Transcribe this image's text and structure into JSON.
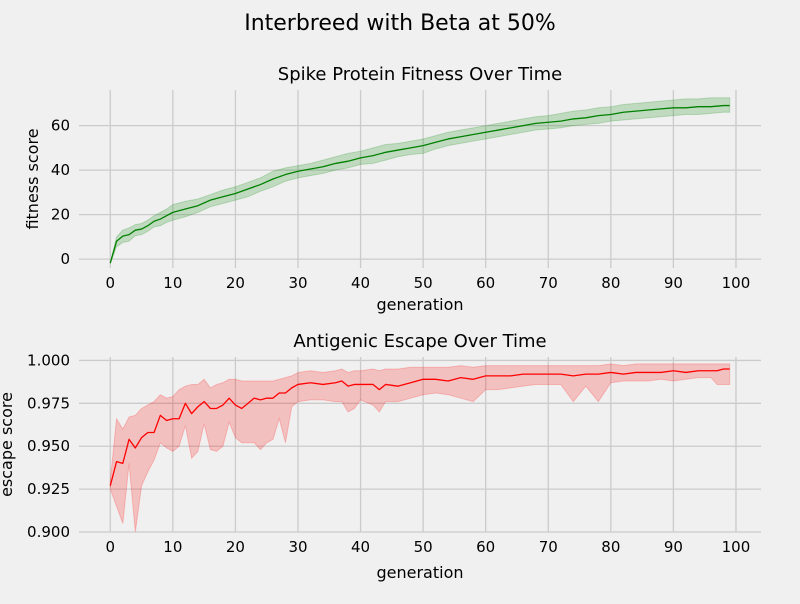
{
  "figure": {
    "suptitle": "Interbreed with Beta at 50%"
  },
  "chart_data": [
    {
      "type": "line",
      "title": "Spike Protein Fitness Over Time",
      "xlabel": "generation",
      "ylabel": "fitness score",
      "xlim": [
        -5,
        104
      ],
      "ylim": [
        -4,
        76
      ],
      "xticks": [
        0,
        10,
        20,
        30,
        40,
        50,
        60,
        70,
        80,
        90,
        100
      ],
      "yticks": [
        0,
        20,
        40,
        60
      ],
      "ytick_labels": [
        "0",
        "20",
        "40",
        "60"
      ],
      "grid": true,
      "series": [
        {
          "line_color": "#008000",
          "band_color": "#008000",
          "x": [
            0,
            1,
            2,
            3,
            4,
            5,
            6,
            7,
            8,
            9,
            10,
            12,
            14,
            16,
            18,
            20,
            22,
            24,
            26,
            28,
            30,
            32,
            34,
            36,
            38,
            40,
            42,
            44,
            46,
            48,
            50,
            52,
            54,
            56,
            58,
            60,
            62,
            64,
            66,
            68,
            70,
            72,
            74,
            76,
            78,
            80,
            82,
            84,
            86,
            88,
            90,
            92,
            94,
            96,
            98,
            99
          ],
          "mean": [
            -1.8,
            8,
            10.3,
            11,
            13,
            13.5,
            15,
            17,
            18,
            19.5,
            21,
            22.5,
            24,
            26.5,
            28,
            29.5,
            31.5,
            33.5,
            36,
            38,
            39.5,
            40.5,
            41.5,
            43,
            44,
            45.5,
            46.5,
            48,
            49,
            50,
            51,
            52.5,
            54,
            55,
            56,
            57,
            58,
            59,
            60,
            61,
            61.5,
            62,
            63,
            63.5,
            64.5,
            65,
            66,
            66.5,
            67,
            67.5,
            68,
            68,
            68.5,
            68.5,
            69,
            69
          ],
          "upper": [
            -1.5,
            10,
            13,
            14,
            15.5,
            16,
            17.5,
            19.5,
            21,
            22.5,
            24.5,
            26,
            27,
            29,
            31,
            32.5,
            34.5,
            36.5,
            39.5,
            41,
            42,
            43,
            44.5,
            46,
            47.5,
            48.5,
            50,
            51.5,
            52,
            53,
            54,
            55.5,
            57,
            58,
            59,
            60,
            61,
            62,
            63,
            64,
            64.5,
            65.5,
            66.5,
            67,
            68,
            68.5,
            69.5,
            70,
            70.5,
            71,
            71.5,
            72,
            72,
            72.5,
            72.5,
            72.5
          ],
          "lower": [
            -2,
            5.5,
            7.5,
            8,
            10.5,
            11,
            12.5,
            14.5,
            15,
            16.5,
            17.5,
            19,
            21,
            23.5,
            25,
            26.5,
            28,
            30.5,
            32.5,
            35,
            36.5,
            37.5,
            38.5,
            40,
            41,
            42.5,
            43,
            44.5,
            46,
            47,
            47.5,
            49.5,
            51,
            52,
            53,
            54,
            55,
            56,
            57,
            58,
            58.5,
            59,
            60,
            60.5,
            61,
            62,
            62.5,
            63,
            63.5,
            64,
            64.5,
            65,
            65,
            65.5,
            66,
            66
          ]
        }
      ]
    },
    {
      "type": "line",
      "title": "Antigenic Escape Over Time",
      "xlabel": "generation",
      "ylabel": "escape score",
      "xlim": [
        -5,
        104
      ],
      "ylim": [
        0.9,
        1.002
      ],
      "xticks": [
        0,
        10,
        20,
        30,
        40,
        50,
        60,
        70,
        80,
        90,
        100
      ],
      "yticks": [
        0.9,
        0.925,
        0.95,
        0.975,
        1.0
      ],
      "ytick_labels": [
        "0.900",
        "0.925",
        "0.950",
        "0.975",
        "1.000"
      ],
      "grid": true,
      "series": [
        {
          "line_color": "#ff0000",
          "band_color": "#ff0000",
          "x": [
            0,
            1,
            2,
            3,
            4,
            5,
            6,
            7,
            8,
            9,
            10,
            11,
            12,
            13,
            14,
            15,
            16,
            17,
            18,
            19,
            20,
            21,
            22,
            23,
            24,
            25,
            26,
            27,
            28,
            29,
            30,
            32,
            34,
            36,
            37,
            38,
            39,
            40,
            42,
            43,
            44,
            46,
            48,
            50,
            52,
            54,
            56,
            58,
            60,
            62,
            64,
            66,
            68,
            70,
            72,
            74,
            76,
            78,
            80,
            82,
            84,
            86,
            88,
            90,
            92,
            94,
            96,
            97,
            98,
            99
          ],
          "mean": [
            0.927,
            0.941,
            0.94,
            0.954,
            0.949,
            0.955,
            0.958,
            0.958,
            0.968,
            0.965,
            0.966,
            0.966,
            0.975,
            0.969,
            0.973,
            0.976,
            0.972,
            0.972,
            0.974,
            0.978,
            0.974,
            0.972,
            0.975,
            0.978,
            0.977,
            0.978,
            0.978,
            0.981,
            0.981,
            0.984,
            0.986,
            0.987,
            0.986,
            0.987,
            0.988,
            0.985,
            0.986,
            0.986,
            0.986,
            0.983,
            0.986,
            0.985,
            0.987,
            0.989,
            0.989,
            0.988,
            0.99,
            0.989,
            0.991,
            0.991,
            0.991,
            0.992,
            0.992,
            0.992,
            0.992,
            0.991,
            0.992,
            0.992,
            0.993,
            0.992,
            0.993,
            0.993,
            0.993,
            0.994,
            0.993,
            0.994,
            0.994,
            0.994,
            0.995,
            0.995
          ],
          "upper": [
            0.93,
            0.966,
            0.96,
            0.967,
            0.968,
            0.972,
            0.974,
            0.976,
            0.98,
            0.978,
            0.979,
            0.983,
            0.985,
            0.986,
            0.986,
            0.989,
            0.984,
            0.986,
            0.987,
            0.989,
            0.989,
            0.988,
            0.988,
            0.988,
            0.988,
            0.988,
            0.988,
            0.989,
            0.99,
            0.991,
            0.993,
            0.994,
            0.993,
            0.994,
            0.995,
            0.993,
            0.994,
            0.994,
            0.995,
            0.994,
            0.995,
            0.995,
            0.996,
            0.996,
            0.996,
            0.996,
            0.997,
            0.996,
            0.997,
            0.997,
            0.997,
            0.997,
            0.997,
            0.997,
            0.997,
            0.997,
            0.997,
            0.997,
            0.998,
            0.997,
            0.998,
            0.998,
            0.998,
            0.998,
            0.998,
            0.998,
            0.998,
            0.998,
            0.998,
            0.998
          ],
          "lower": [
            0.925,
            0.915,
            0.905,
            0.94,
            0.9,
            0.927,
            0.935,
            0.942,
            0.952,
            0.949,
            0.947,
            0.95,
            0.962,
            0.943,
            0.947,
            0.963,
            0.948,
            0.947,
            0.95,
            0.964,
            0.955,
            0.952,
            0.952,
            0.952,
            0.948,
            0.952,
            0.954,
            0.966,
            0.952,
            0.973,
            0.976,
            0.977,
            0.977,
            0.976,
            0.976,
            0.97,
            0.972,
            0.977,
            0.974,
            0.97,
            0.976,
            0.976,
            0.978,
            0.98,
            0.981,
            0.98,
            0.978,
            0.976,
            0.983,
            0.983,
            0.984,
            0.985,
            0.986,
            0.986,
            0.986,
            0.976,
            0.985,
            0.976,
            0.987,
            0.988,
            0.988,
            0.988,
            0.989,
            0.988,
            0.989,
            0.99,
            0.99,
            0.986,
            0.986,
            0.986
          ]
        }
      ]
    }
  ]
}
